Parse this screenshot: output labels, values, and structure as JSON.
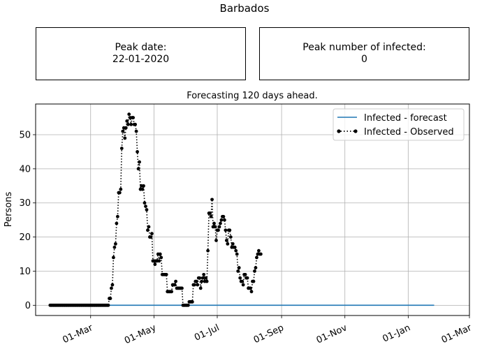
{
  "figure": {
    "title": "Barbados",
    "peak_date_label": "Peak date:",
    "peak_date_value": "22-01-2020",
    "peak_infected_label": "Peak number of infected:",
    "peak_infected_value": "0"
  },
  "chart_data": {
    "type": "line",
    "title": "Forecasting 120 days ahead.",
    "xlabel": "",
    "ylabel": "Persons",
    "x_type": "date",
    "xlim": [
      "2020-01-08",
      "2021-03-01"
    ],
    "ylim": [
      -3,
      59
    ],
    "grid": true,
    "legend_position": "top-right",
    "x_ticks": [
      {
        "date": "2020-03-01",
        "label": "01-Mar"
      },
      {
        "date": "2020-05-01",
        "label": "01-May"
      },
      {
        "date": "2020-07-01",
        "label": "01-Jul"
      },
      {
        "date": "2020-09-01",
        "label": "01-Sep"
      },
      {
        "date": "2020-11-01",
        "label": "01-Nov"
      },
      {
        "date": "2021-01-01",
        "label": "01-Jan"
      },
      {
        "date": "2021-03-01",
        "label": "01-Mar"
      }
    ],
    "y_ticks": [
      0,
      10,
      20,
      30,
      40,
      50
    ],
    "series": [
      {
        "name": "Infected - forecast",
        "style": "solid",
        "color": "#1f77b4",
        "points": [
          [
            "2020-01-22",
            0
          ],
          [
            "2021-01-26",
            0
          ]
        ]
      },
      {
        "name": "Infected - Observed",
        "style": "dotted-markers",
        "color": "#000000",
        "start_date": "2020-01-22",
        "values": [
          0,
          0,
          0,
          0,
          0,
          0,
          0,
          0,
          0,
          0,
          0,
          0,
          0,
          0,
          0,
          0,
          0,
          0,
          0,
          0,
          0,
          0,
          0,
          0,
          0,
          0,
          0,
          0,
          0,
          0,
          0,
          0,
          0,
          0,
          0,
          0,
          0,
          0,
          0,
          0,
          0,
          0,
          0,
          0,
          0,
          0,
          0,
          0,
          0,
          0,
          0,
          0,
          0,
          0,
          0,
          0,
          0,
          2,
          2,
          5,
          6,
          14,
          17,
          18,
          24,
          26,
          33,
          33,
          34,
          46,
          51,
          52,
          49,
          52,
          54,
          53,
          56,
          55,
          53,
          55,
          55,
          53,
          53,
          51,
          45,
          40,
          42,
          34,
          35,
          34,
          35,
          30,
          29,
          28,
          22,
          23,
          20,
          20,
          21,
          13,
          13,
          12,
          13,
          13,
          15,
          13,
          15,
          14,
          9,
          9,
          9,
          9,
          9,
          4,
          4,
          4,
          4,
          4,
          6,
          6,
          6,
          7,
          5,
          5,
          5,
          5,
          5,
          5,
          0,
          0,
          0,
          0,
          0,
          0,
          1,
          1,
          1,
          1,
          6,
          6,
          7,
          7,
          6,
          8,
          8,
          5,
          7,
          8,
          9,
          7,
          8,
          7,
          16,
          27,
          27,
          26,
          31,
          23,
          24,
          23,
          19,
          22,
          22,
          23,
          24,
          25,
          26,
          26,
          25,
          22,
          19,
          18,
          22,
          22,
          20,
          17,
          18,
          17,
          17,
          16,
          15,
          10,
          11,
          8,
          7,
          7,
          6,
          9,
          9,
          8,
          8,
          5,
          5,
          5,
          4,
          7,
          7,
          10,
          11,
          14,
          15,
          16,
          15,
          15
        ]
      }
    ]
  }
}
